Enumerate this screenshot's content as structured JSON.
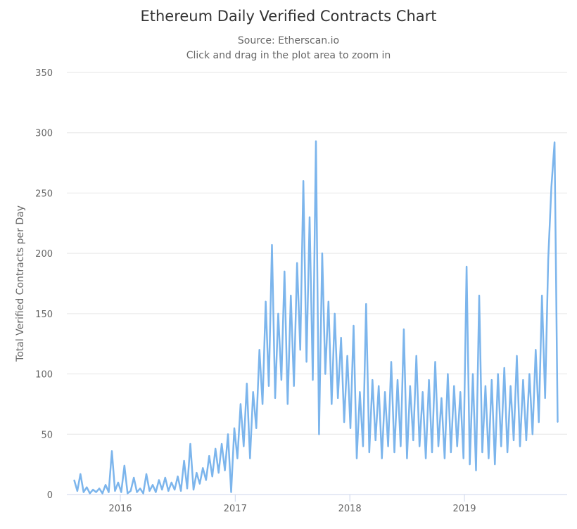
{
  "chart_data": {
    "type": "line",
    "title": "Ethereum Daily Verified Contracts Chart",
    "subtitle": [
      "Source: Etherscan.io",
      "Click and drag in the plot area to zoom in"
    ],
    "xlabel": "",
    "ylabel": "Total Verified Contracts per Day",
    "ylim": [
      0,
      350
    ],
    "yticks": [
      0,
      50,
      100,
      150,
      200,
      250,
      300,
      350
    ],
    "xticks": [
      "2016",
      "2017",
      "2018",
      "2019"
    ],
    "grid": "horizontal",
    "legend": "none",
    "line_color": "#7cb5ec",
    "x_start": "2015-08-07",
    "x_step_days": 10,
    "values": [
      12,
      3,
      17,
      2,
      6,
      1,
      4,
      2,
      5,
      1,
      8,
      2,
      36,
      3,
      10,
      2,
      24,
      1,
      3,
      14,
      2,
      5,
      1,
      17,
      3,
      8,
      2,
      12,
      4,
      14,
      3,
      10,
      4,
      15,
      3,
      28,
      5,
      42,
      4,
      18,
      9,
      22,
      12,
      32,
      15,
      38,
      18,
      42,
      20,
      50,
      2,
      55,
      30,
      75,
      40,
      92,
      30,
      85,
      55,
      120,
      75,
      160,
      90,
      207,
      80,
      150,
      95,
      185,
      75,
      165,
      90,
      192,
      120,
      260,
      110,
      230,
      95,
      293,
      50,
      200,
      100,
      160,
      75,
      150,
      80,
      130,
      60,
      115,
      55,
      140,
      30,
      85,
      40,
      158,
      35,
      95,
      45,
      90,
      30,
      85,
      40,
      110,
      35,
      95,
      40,
      137,
      30,
      90,
      45,
      115,
      40,
      85,
      30,
      95,
      35,
      110,
      40,
      80,
      30,
      100,
      35,
      90,
      40,
      85,
      30,
      189,
      25,
      100,
      20,
      165,
      35,
      90,
      30,
      95,
      25,
      100,
      40,
      105,
      35,
      90,
      45,
      115,
      40,
      95,
      45,
      100,
      50,
      120,
      60,
      165,
      80,
      195,
      255,
      292,
      60
    ]
  }
}
